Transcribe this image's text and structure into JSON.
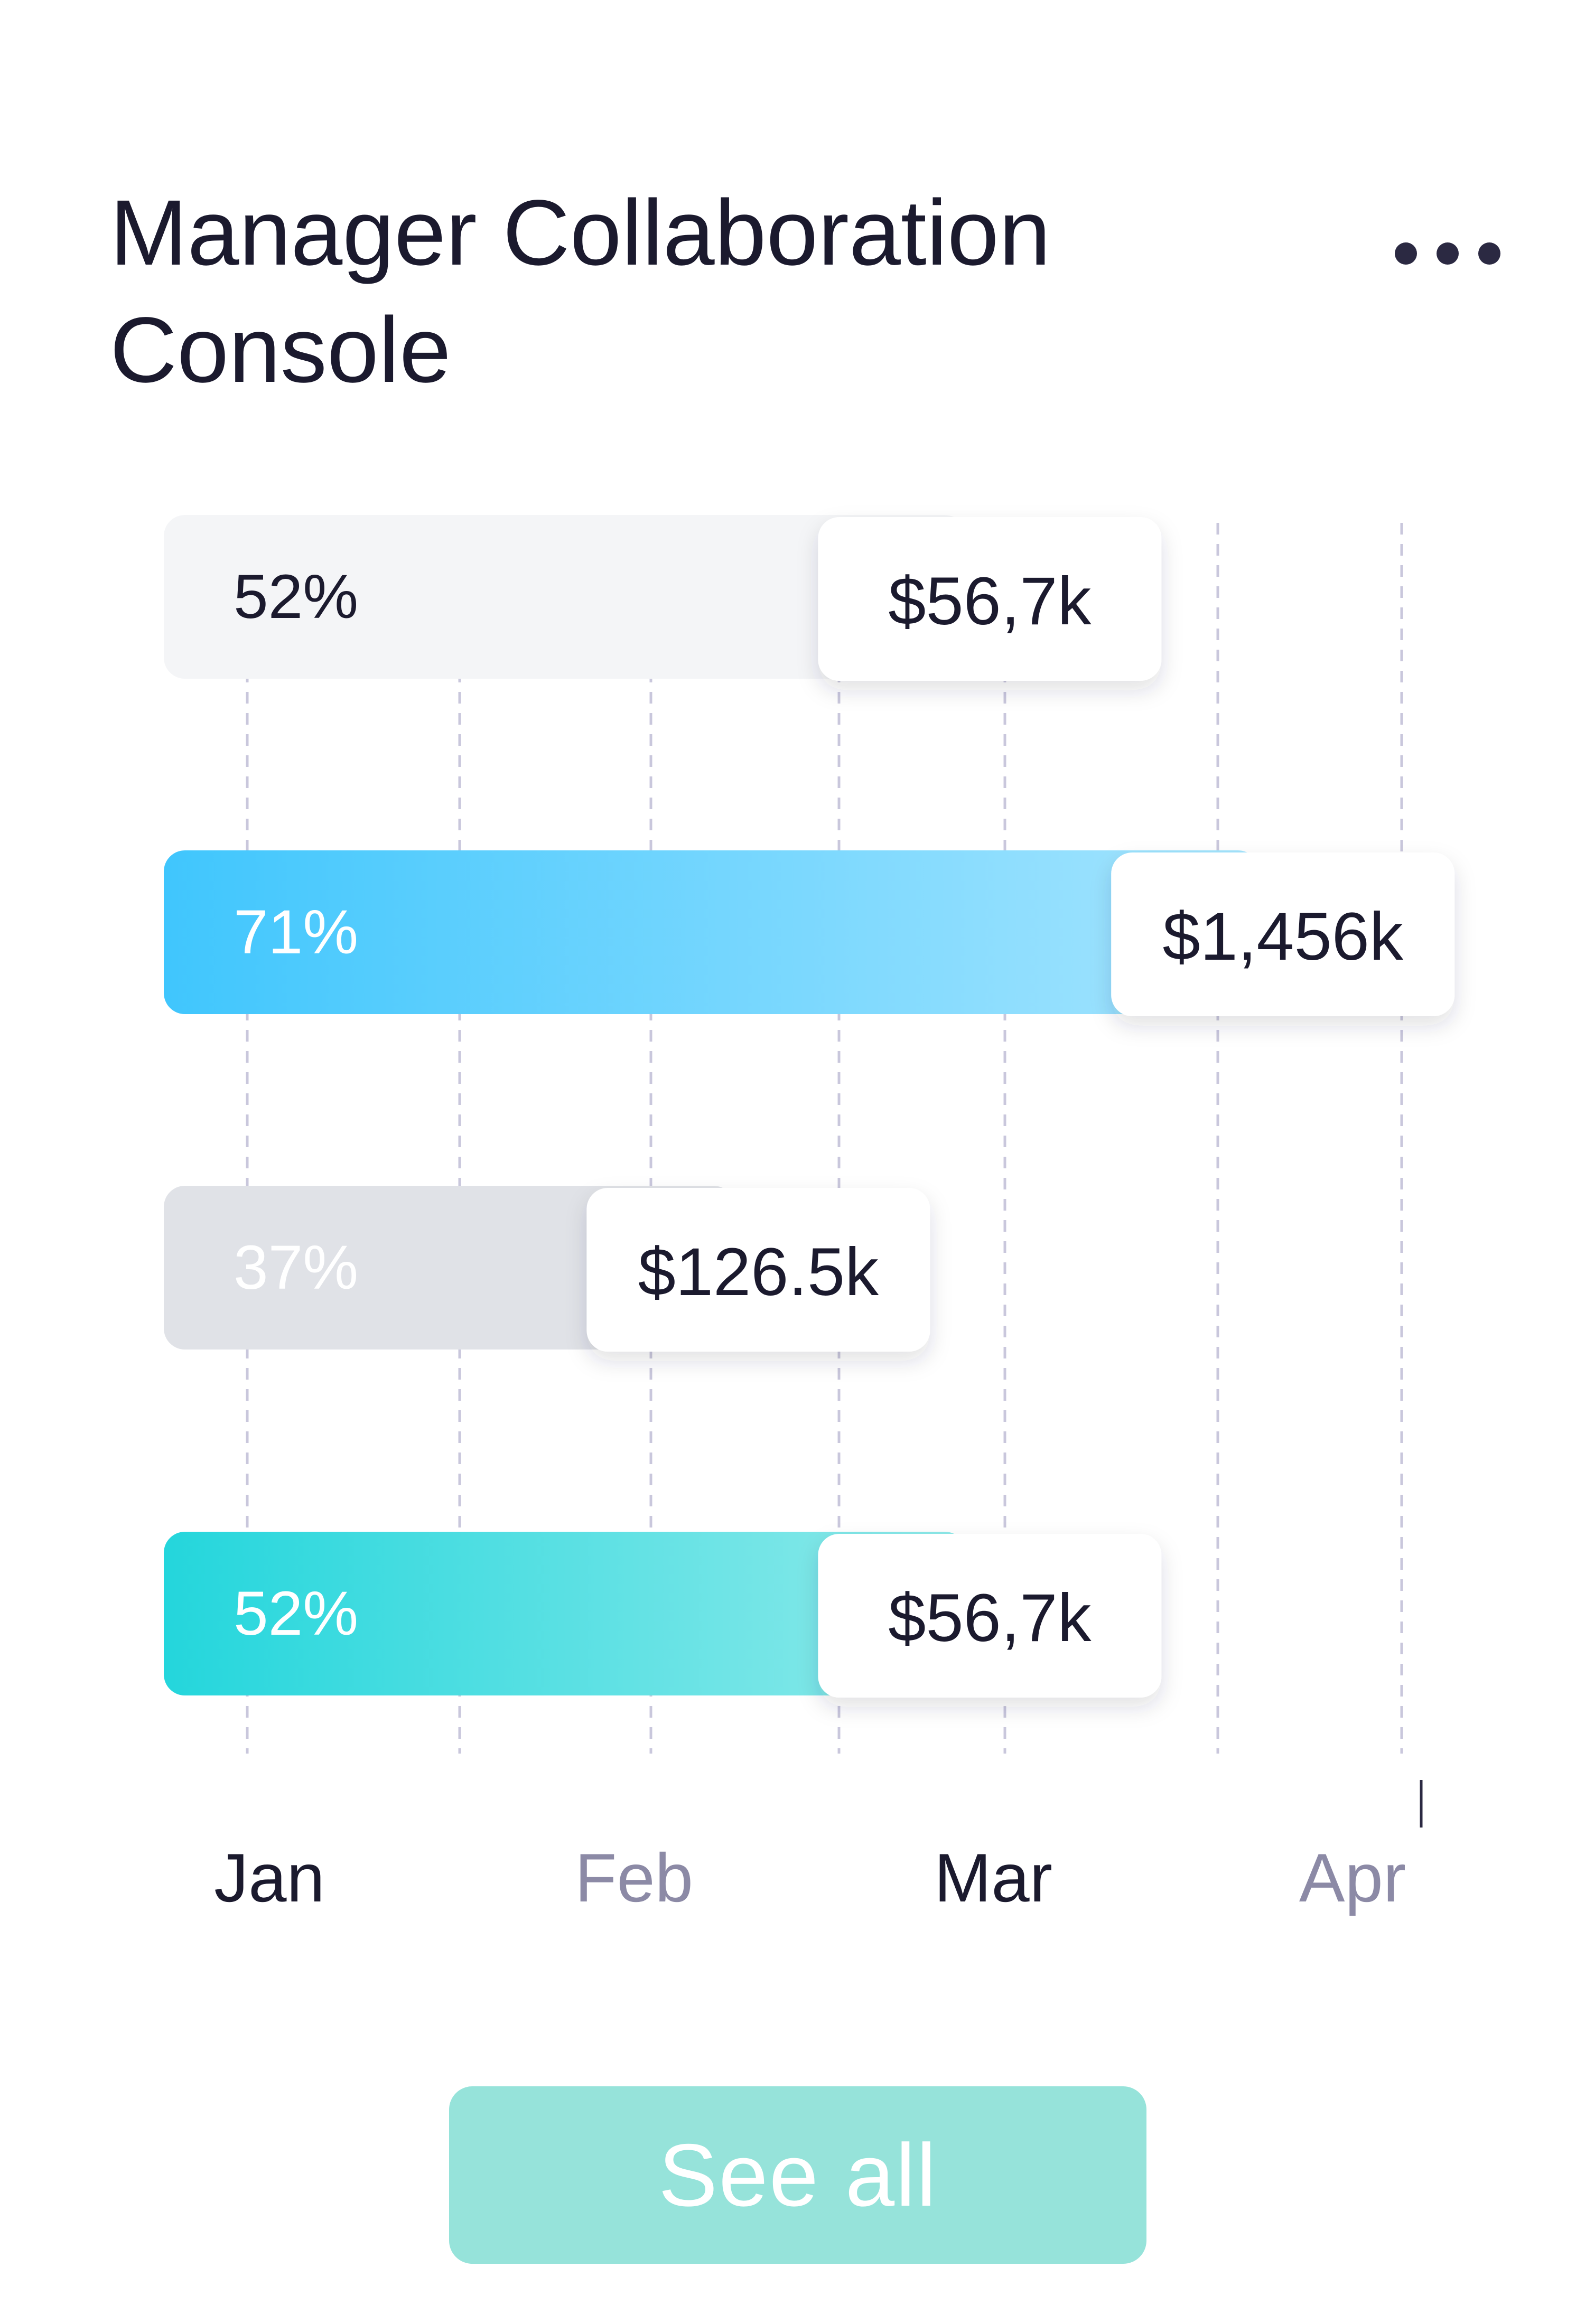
{
  "card": {
    "title": "Manager Collaboration Console",
    "more_icon": "more-horizontal-icon",
    "see_all_label": "See all"
  },
  "colors": {
    "title": "#1b1a2e",
    "grid": "#c9c7dc",
    "axis_label_active": "#1b1a2e",
    "axis_label_muted": "#8c8aa6",
    "button": "#96e3da"
  },
  "chart_data": {
    "type": "bar",
    "orientation": "horizontal",
    "x_axis_labels": [
      "Jan",
      "Feb",
      "Mar",
      "Apr"
    ],
    "x_axis_label_highlight": [
      true,
      false,
      true,
      false
    ],
    "grid": true,
    "bars": [
      {
        "percent": 52,
        "label": "52%",
        "value_label": "$56,7k",
        "fill": "light-gray",
        "colors": [
          "#f4f5f7",
          "#f4f5f7"
        ],
        "label_color": "#1b1a2e"
      },
      {
        "percent": 71,
        "label": "71%",
        "value_label": "$1,456k",
        "fill": "gradient-blue",
        "colors": [
          "#40c6fd",
          "#a6e5fe"
        ],
        "label_color": "#ffffff"
      },
      {
        "percent": 37,
        "label": "37%",
        "value_label": "$126.5k",
        "fill": "gray",
        "colors": [
          "#e0e2e7",
          "#e0e2e7"
        ],
        "label_color": "#ffffff"
      },
      {
        "percent": 52,
        "label": "52%",
        "value_label": "$56,7k",
        "fill": "gradient-teal",
        "colors": [
          "#24d6dc",
          "#8feaea"
        ],
        "label_color": "#ffffff"
      }
    ]
  }
}
